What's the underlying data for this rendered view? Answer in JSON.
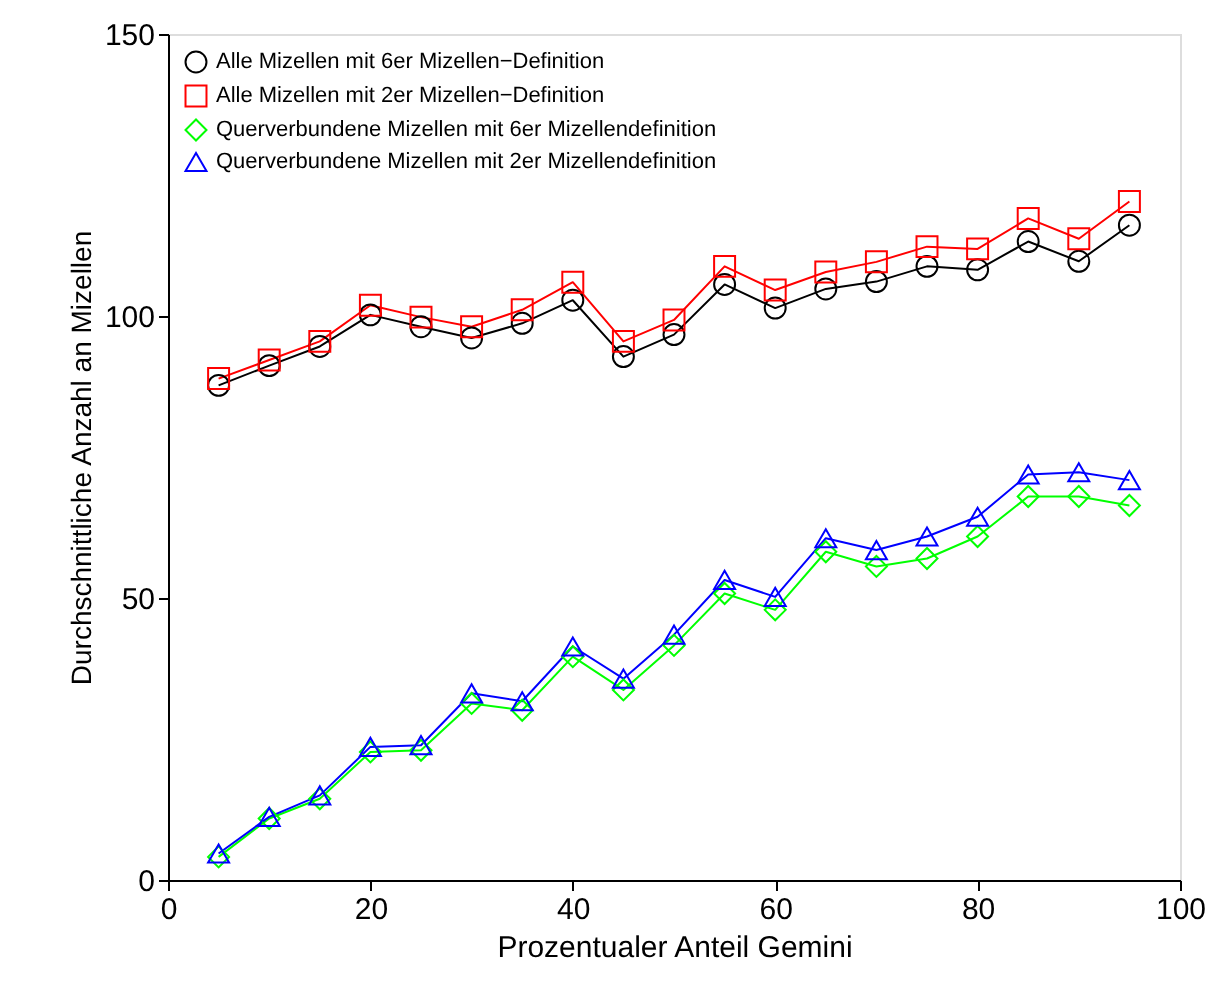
{
  "chart_data": {
    "type": "line",
    "xlabel": "Prozentualer Anteil Gemini",
    "ylabel": "Durchschnittliche Anzahl an Mizellen",
    "x": [
      5,
      10,
      15,
      20,
      25,
      30,
      35,
      40,
      45,
      50,
      55,
      60,
      65,
      70,
      75,
      80,
      85,
      90,
      95
    ],
    "xlim": [
      0,
      100
    ],
    "xticks": [
      0,
      20,
      40,
      60,
      80,
      100
    ],
    "ylim": [
      0,
      150
    ],
    "yticks": [
      0,
      50,
      100,
      150
    ],
    "grid": false,
    "legend": "top left",
    "line_style": "solid",
    "series": [
      {
        "name": "Alle Mizellen mit 6er Mizellen−Definition",
        "color": "#000000",
        "marker": "circle",
        "values": [
          87.7,
          91.2,
          94.6,
          100.2,
          98.1,
          96.1,
          98.7,
          102.8,
          92.8,
          96.7,
          105.6,
          101.4,
          104.8,
          106.1,
          108.8,
          108.2,
          113.2,
          109.7,
          116.1
        ]
      },
      {
        "name": "Alle Mizellen mit 2er Mizellen−Definition",
        "color": "#ff0000",
        "marker": "square",
        "values": [
          88.9,
          92.2,
          95.5,
          101.9,
          99.8,
          98.1,
          101.1,
          106.0,
          95.5,
          99.3,
          108.8,
          104.6,
          107.8,
          109.6,
          112.3,
          111.9,
          117.3,
          113.7,
          120.3
        ]
      },
      {
        "name": "Querverbundene Mizellen mit 6er Mizellendefinition",
        "color": "#00ff00",
        "marker": "diamond",
        "values": [
          4.1,
          10.9,
          14.4,
          22.7,
          23.0,
          31.3,
          30.1,
          39.6,
          33.7,
          41.6,
          50.8,
          47.9,
          58.2,
          55.6,
          57.0,
          60.9,
          68.0,
          68.0,
          66.4
        ]
      },
      {
        "name": "Querverbundene Mizellen mit 2er Mizellendefinition",
        "color": "#0000ff",
        "marker": "triangle",
        "values": [
          4.7,
          11.2,
          15.0,
          23.6,
          23.9,
          33.1,
          31.7,
          41.4,
          35.7,
          43.5,
          53.2,
          50.2,
          60.6,
          58.5,
          60.9,
          64.4,
          71.9,
          72.3,
          70.9
        ]
      }
    ]
  }
}
